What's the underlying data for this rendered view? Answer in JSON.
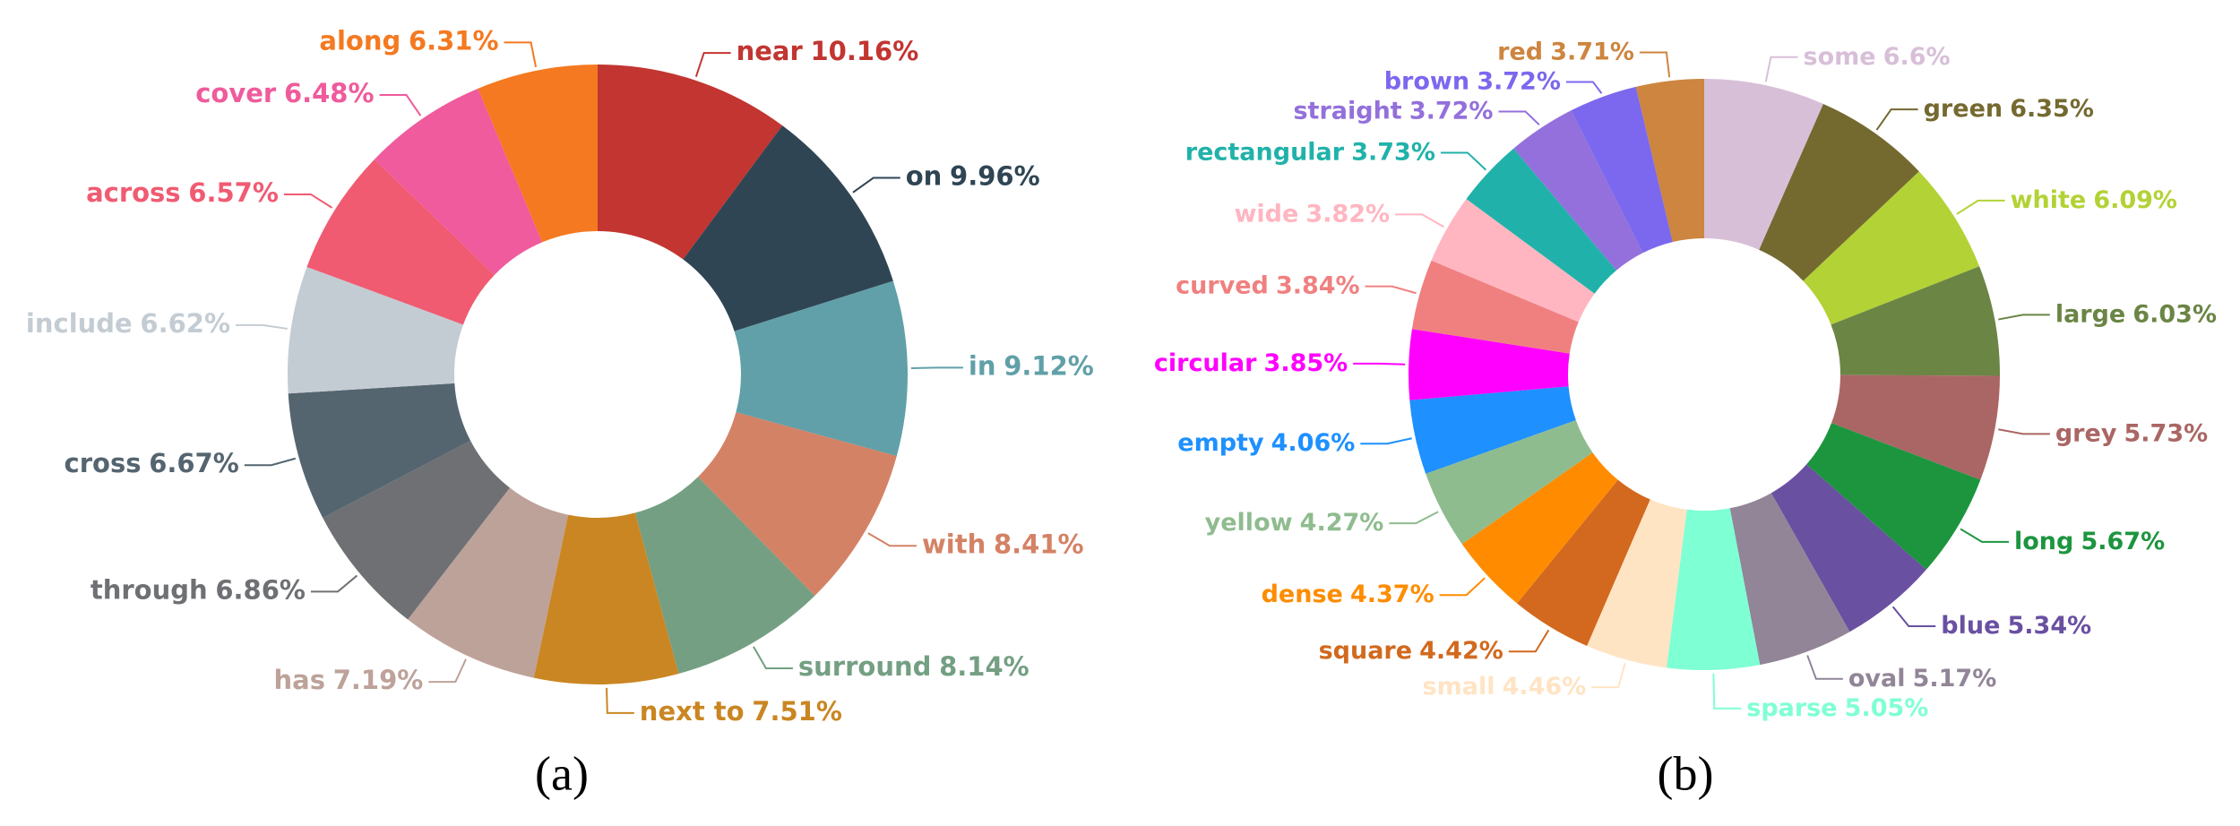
{
  "chart_data": [
    {
      "type": "pie",
      "caption": "(a)",
      "categories": [
        "near",
        "on",
        "in",
        "with",
        "surround",
        "next to",
        "has",
        "through",
        "cross",
        "include",
        "across",
        "cover",
        "along"
      ],
      "values": [
        10.16,
        9.96,
        9.12,
        8.41,
        8.14,
        7.51,
        7.19,
        6.86,
        6.67,
        6.62,
        6.57,
        6.48,
        6.31
      ],
      "value_labels": [
        "10.16%",
        "9.96%",
        "9.12%",
        "8.41%",
        "8.14%",
        "7.51%",
        "7.19%",
        "6.86%",
        "6.67%",
        "6.62%",
        "6.57%",
        "6.48%",
        "6.31%"
      ],
      "colors": [
        "#c23531",
        "#2f4554",
        "#61a0a8",
        "#d48265",
        "#749f83",
        "#ca8622",
        "#bda29a",
        "#6e7074",
        "#546570",
        "#c4ccd3",
        "#f05b72",
        "#ef5b9c",
        "#f47920"
      ]
    },
    {
      "type": "pie",
      "caption": "(b)",
      "categories": [
        "some",
        "green",
        "white",
        "large",
        "grey",
        "long",
        "blue",
        "oval",
        "sparse",
        "small",
        "square",
        "dense",
        "yellow",
        "empty",
        "circular",
        "curved",
        "wide",
        "rectangular",
        "straight",
        "brown",
        "red"
      ],
      "values": [
        6.6,
        6.35,
        6.09,
        6.03,
        5.73,
        5.67,
        5.34,
        5.17,
        5.05,
        4.46,
        4.42,
        4.37,
        4.27,
        4.06,
        3.85,
        3.84,
        3.82,
        3.73,
        3.72,
        3.72,
        3.71
      ],
      "value_labels": [
        "6.6%",
        "6.35%",
        "6.09%",
        "6.03%",
        "5.73%",
        "5.67%",
        "5.34%",
        "5.17%",
        "5.05%",
        "4.46%",
        "4.42%",
        "4.37%",
        "4.27%",
        "4.06%",
        "3.85%",
        "3.84%",
        "3.82%",
        "3.73%",
        "3.72%",
        "3.72%",
        "3.71%"
      ],
      "colors": [
        "#d8bfd8",
        "#746a30",
        "#b2d235",
        "#6b8545",
        "#aa6664",
        "#1d953f",
        "#6950a1",
        "#918597",
        "#7fffd4",
        "#ffe4c4",
        "#d2691e",
        "#ff8c00",
        "#8fbc8f",
        "#1e90ff",
        "#ff00ff",
        "#f08080",
        "#ffb6c1",
        "#20b2aa",
        "#9370db",
        "#7b68ee",
        "#cd853f"
      ]
    }
  ]
}
